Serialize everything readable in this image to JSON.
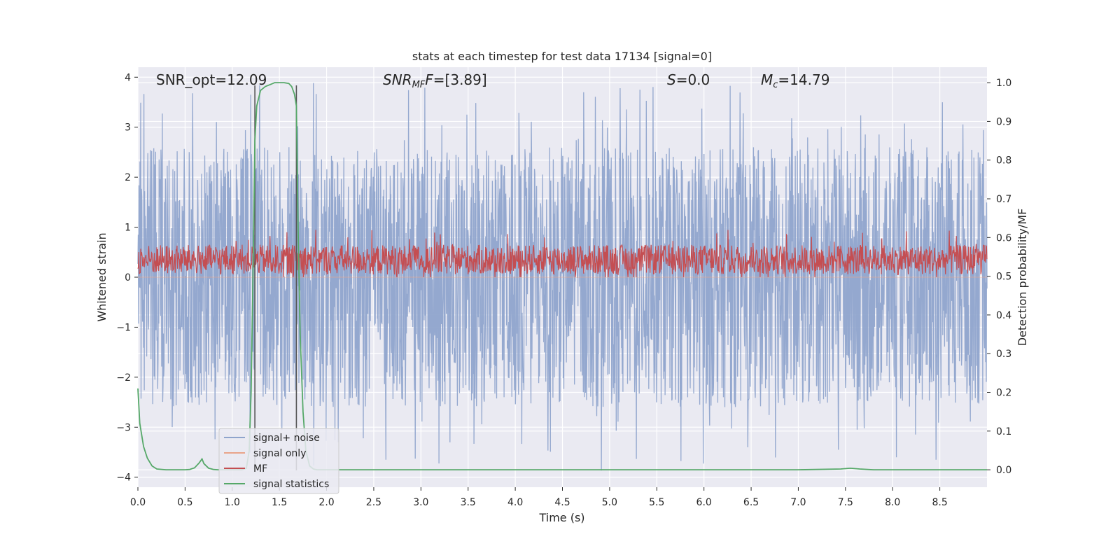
{
  "chart_data": {
    "type": "line",
    "title": "stats at each timestep for test data 17134 [signal=0]",
    "xlabel": "Time (s)",
    "ylabel": "Whitened strain",
    "ylabel_right": "Detection probability/MF",
    "xlim": [
      0,
      9.0
    ],
    "ylim": [
      -4.2,
      4.2
    ],
    "ylim_right": [
      -0.045,
      1.04
    ],
    "x_ticks": [
      0.0,
      0.5,
      1.0,
      1.5,
      2.0,
      2.5,
      3.0,
      3.5,
      4.0,
      4.5,
      5.0,
      5.5,
      6.0,
      6.5,
      7.0,
      7.5,
      8.0,
      8.5
    ],
    "y_ticks": [
      4,
      3,
      2,
      1,
      0,
      -1,
      -2,
      -3,
      -4
    ],
    "y_right_ticks": [
      1.0,
      0.9,
      0.8,
      0.7,
      0.6,
      0.5,
      0.4,
      0.3,
      0.2,
      0.1,
      0.0
    ],
    "grid": true,
    "legend_placement": "lower-left",
    "annotations": {
      "snr_opt": "SNR_opt=12.09",
      "snr_mf_sym": "SNR",
      "snr_mf_sub": "MF",
      "snr_mf_val": "=[3.89]",
      "s_sym": "S",
      "s_val": "=0.0",
      "mc_sym": "M",
      "mc_sub": "c",
      "mc_val": "=14.79"
    },
    "vertical_lines_x": [
      1.24,
      1.68
    ],
    "series": [
      {
        "name": "signal+ noise",
        "color": "#8fa4cc",
        "kind": "noise",
        "axis": "left",
        "range": [
          -2.6,
          2.6
        ],
        "extremes": [
          3.9,
          -3.9
        ]
      },
      {
        "name": "signal only",
        "color": "#e9a48a",
        "kind": "flat",
        "axis": "left",
        "value": 0
      },
      {
        "name": "MF",
        "color": "#c44e52",
        "kind": "noise",
        "axis": "left",
        "range": [
          0.05,
          0.65
        ],
        "extremes": [
          0.95,
          0.0
        ]
      },
      {
        "name": "signal statistics",
        "color": "#55a868",
        "kind": "line",
        "axis": "right",
        "x": [
          0.0,
          0.02,
          0.06,
          0.1,
          0.15,
          0.2,
          0.3,
          0.4,
          0.5,
          0.55,
          0.6,
          0.65,
          0.68,
          0.7,
          0.75,
          0.8,
          0.85,
          1.0,
          1.1,
          1.15,
          1.18,
          1.2,
          1.22,
          1.24,
          1.26,
          1.3,
          1.35,
          1.4,
          1.45,
          1.5,
          1.55,
          1.6,
          1.63,
          1.66,
          1.68,
          1.7,
          1.72,
          1.75,
          1.78,
          1.82,
          1.86,
          1.9,
          2.0,
          2.5,
          3.0,
          4.0,
          5.0,
          6.0,
          7.0,
          7.45,
          7.55,
          7.65,
          7.8,
          8.0,
          9.0
        ],
        "y": [
          0.21,
          0.12,
          0.06,
          0.03,
          0.01,
          0.002,
          0.0,
          0.0,
          0.0,
          0.001,
          0.005,
          0.018,
          0.028,
          0.016,
          0.004,
          0.001,
          0.0,
          0.0,
          0.0,
          0.004,
          0.05,
          0.2,
          0.5,
          0.85,
          0.94,
          0.98,
          0.99,
          0.995,
          1.0,
          1.0,
          1.0,
          0.998,
          0.99,
          0.97,
          0.94,
          0.6,
          0.35,
          0.15,
          0.05,
          0.01,
          0.002,
          0.0,
          0.0,
          0.0,
          0.0,
          0.0,
          0.0,
          0.0,
          0.0,
          0.002,
          0.004,
          0.002,
          0.0,
          0.0,
          0.0
        ]
      }
    ]
  }
}
